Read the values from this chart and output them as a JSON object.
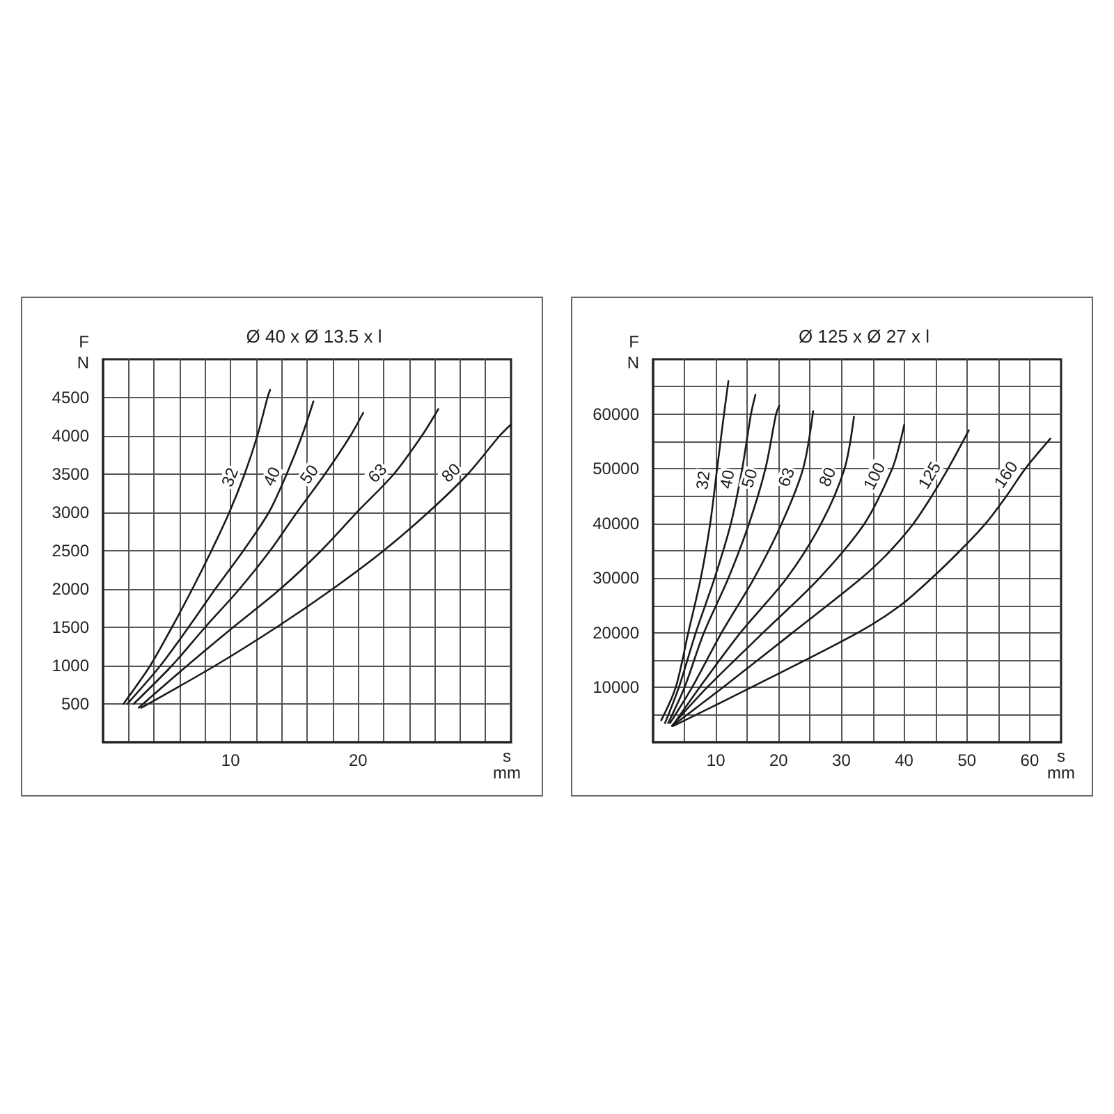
{
  "chart_data": [
    {
      "type": "line",
      "title": "Ø 40 x Ø 13.5 x l",
      "xlabel": "s\nmm",
      "ylabel": "F\nN",
      "grid": true,
      "xlim": [
        0,
        32
      ],
      "xticks": [
        {
          "value": 2,
          "label": null
        },
        {
          "value": 4,
          "label": null
        },
        {
          "value": 6,
          "label": null
        },
        {
          "value": 8,
          "label": null
        },
        10,
        {
          "value": 12,
          "label": null
        },
        {
          "value": 14,
          "label": null
        },
        {
          "value": 16,
          "label": null
        },
        {
          "value": 18,
          "label": null
        },
        20,
        {
          "value": 22,
          "label": null
        },
        {
          "value": 24,
          "label": null
        },
        {
          "value": 26,
          "label": null
        },
        {
          "value": 28,
          "label": null
        },
        {
          "value": 30,
          "label": null
        }
      ],
      "ylim": [
        0,
        5000
      ],
      "yticks": [
        500,
        1000,
        1500,
        2000,
        2500,
        3000,
        3500,
        4000,
        4500
      ],
      "series": [
        {
          "name": "32",
          "color": "#1a1a1a",
          "x": [
            1.6,
            3.7,
            5.4,
            7.0,
            8.5,
            9.9,
            11.1,
            12.1,
            12.9,
            13.1
          ],
          "values": [
            500,
            1000,
            1500,
            2000,
            2500,
            3000,
            3500,
            4000,
            4500,
            4600
          ]
        },
        {
          "name": "40",
          "color": "#1a1a1a",
          "x": [
            1.9,
            4.5,
            6.7,
            8.8,
            11.0,
            13.0,
            14.4,
            15.6,
            16.5
          ],
          "values": [
            500,
            1000,
            1500,
            2000,
            2500,
            3000,
            3500,
            4000,
            4450
          ]
        },
        {
          "name": "50",
          "color": "#1a1a1a",
          "x": [
            2.4,
            5.4,
            8.0,
            10.7,
            13.1,
            15.2,
            17.4,
            19.4,
            20.4
          ],
          "values": [
            500,
            1000,
            1500,
            2000,
            2500,
            3000,
            3500,
            4000,
            4300
          ]
        },
        {
          "name": "63",
          "color": "#1a1a1a",
          "x": [
            2.8,
            6.6,
            10.2,
            13.9,
            17.1,
            19.9,
            22.8,
            25.0,
            26.3
          ],
          "values": [
            450,
            1000,
            1500,
            2000,
            2500,
            3000,
            3500,
            4000,
            4350
          ]
        },
        {
          "name": "80",
          "color": "#1a1a1a",
          "x": [
            3.0,
            8.8,
            13.6,
            18.0,
            22.0,
            25.5,
            28.6,
            31.1,
            32.0
          ],
          "values": [
            450,
            1000,
            1500,
            2000,
            2500,
            3000,
            3500,
            4000,
            4150
          ]
        }
      ]
    },
    {
      "type": "line",
      "title": "Ø 125 x Ø 27 x l",
      "xlabel": "s\nmm",
      "ylabel": "F\nN",
      "grid": true,
      "xlim": [
        0,
        65
      ],
      "xticks": [
        {
          "value": 5,
          "label": null
        },
        10,
        {
          "value": 15,
          "label": null
        },
        20,
        {
          "value": 25,
          "label": null
        },
        30,
        {
          "value": 35,
          "label": null
        },
        40,
        {
          "value": 45,
          "label": null
        },
        50,
        {
          "value": 55,
          "label": null
        },
        60
      ],
      "ylim": [
        0,
        70000
      ],
      "yticks": [
        {
          "value": 5000,
          "label": null
        },
        10000,
        {
          "value": 15000,
          "label": null
        },
        20000,
        {
          "value": 25000,
          "label": null
        },
        30000,
        {
          "value": 35000,
          "label": null
        },
        40000,
        {
          "value": 45000,
          "label": null
        },
        50000,
        {
          "value": 55000,
          "label": null
        },
        60000,
        {
          "value": 65000,
          "label": null
        }
      ],
      "series": [
        {
          "name": "32",
          "color": "#1a1a1a",
          "x": [
            1.3,
            3.6,
            5.6,
            7.6,
            9.1,
            10.2,
            11.3,
            12.0
          ],
          "values": [
            4000,
            10000,
            20000,
            30000,
            40000,
            50000,
            60000,
            66000
          ]
        },
        {
          "name": "40",
          "color": "#1a1a1a",
          "x": [
            1.9,
            4.1,
            6.8,
            9.8,
            12.4,
            14.2,
            15.6,
            16.3
          ],
          "values": [
            3500,
            10000,
            20000,
            30000,
            40000,
            50000,
            60000,
            63500
          ]
        },
        {
          "name": "50",
          "color": "#1a1a1a",
          "x": [
            2.4,
            5.0,
            8.1,
            12.0,
            15.3,
            17.9,
            19.6,
            20.1
          ],
          "values": [
            3500,
            10000,
            20000,
            30000,
            40000,
            50000,
            60000,
            61500
          ]
        },
        {
          "name": "63",
          "color": "#1a1a1a",
          "x": [
            2.7,
            6.2,
            10.9,
            16.1,
            20.5,
            23.9,
            25.5
          ],
          "values": [
            3500,
            10000,
            20000,
            30000,
            40000,
            50000,
            60500
          ]
        },
        {
          "name": "80",
          "color": "#1a1a1a",
          "x": [
            3.1,
            7.4,
            13.9,
            21.3,
            26.8,
            30.5,
            32.0
          ],
          "values": [
            3000,
            10000,
            20000,
            30000,
            40000,
            50000,
            59500
          ]
        },
        {
          "name": "100",
          "color": "#1a1a1a",
          "x": [
            3.0,
            8.6,
            17.5,
            26.5,
            33.7,
            38.1,
            39.4,
            40.0
          ],
          "values": [
            3000,
            10000,
            20000,
            30000,
            40000,
            50000,
            55000,
            58000
          ]
        },
        {
          "name": "125",
          "color": "#1a1a1a",
          "x": [
            3.1,
            11.1,
            22.2,
            33.2,
            37.8,
            41.5,
            44.4,
            47.0,
            50.3
          ],
          "values": [
            3000,
            10000,
            20000,
            30000,
            35000,
            40000,
            45000,
            50000,
            57000
          ]
        },
        {
          "name": "160",
          "color": "#1a1a1a",
          "x": [
            3.3,
            15.6,
            32.6,
            39.4,
            44.4,
            48.9,
            53.0,
            56.3,
            59.3,
            63.3
          ],
          "values": [
            3000,
            10000,
            20000,
            25000,
            30000,
            35000,
            40000,
            45000,
            50000,
            55500
          ]
        }
      ]
    }
  ]
}
